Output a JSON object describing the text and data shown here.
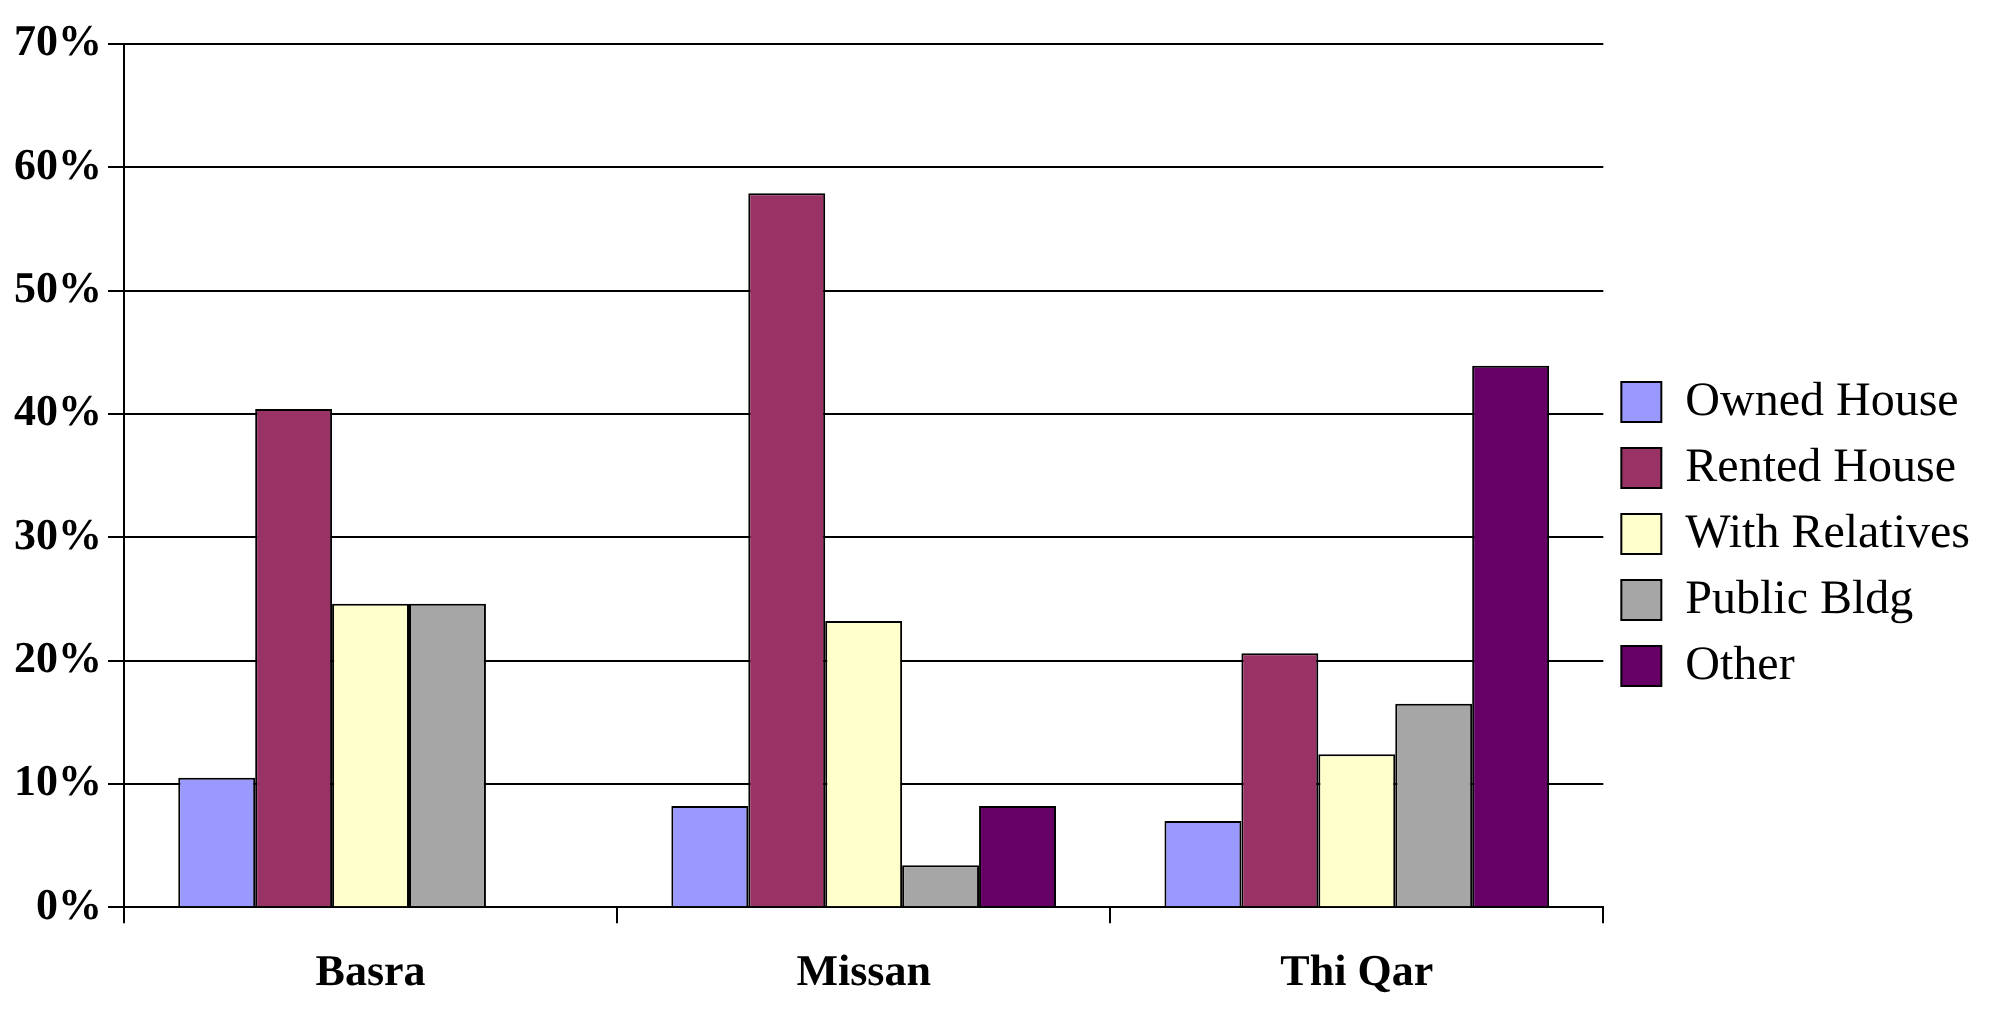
{
  "chart_data": {
    "type": "bar",
    "categories": [
      "Basra",
      "Missan",
      "Thi Qar"
    ],
    "series": [
      {
        "name": "Owned House",
        "color": "#9999ff",
        "values": [
          10.5,
          8.2,
          7.0
        ]
      },
      {
        "name": "Rented House",
        "color": "#993366",
        "values": [
          40.4,
          57.9,
          20.6
        ]
      },
      {
        "name": "With Relatives",
        "color": "#ffffcc",
        "values": [
          24.6,
          23.2,
          12.4
        ]
      },
      {
        "name": "Public Bldg",
        "color": "#a6a6a6",
        "values": [
          24.6,
          3.4,
          16.5
        ]
      },
      {
        "name": "Other",
        "color": "#660066",
        "values": [
          0,
          8.2,
          43.9
        ]
      }
    ],
    "ylim": [
      0,
      70
    ],
    "yticks": [
      {
        "value": 0,
        "label": "0%"
      },
      {
        "value": 10,
        "label": "10%"
      },
      {
        "value": 20,
        "label": "20%"
      },
      {
        "value": 30,
        "label": "30%"
      },
      {
        "value": 40,
        "label": "40%"
      },
      {
        "value": 50,
        "label": "50%"
      },
      {
        "value": 60,
        "label": "60%"
      },
      {
        "value": 70,
        "label": "70%"
      }
    ],
    "grid": "y",
    "legend": "right"
  }
}
